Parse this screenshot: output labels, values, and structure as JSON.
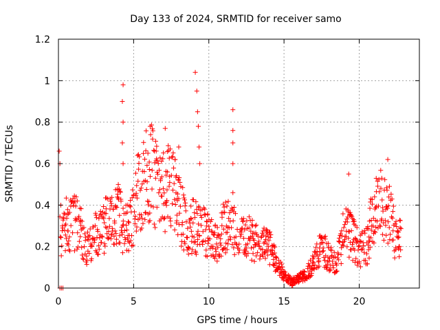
{
  "chart_data": {
    "type": "scatter",
    "title": "Day 133 of 2024, SRMTID for receiver samo",
    "xlabel": "GPS time / hours",
    "ylabel": "SRMTID / TECUs",
    "xlim": [
      0,
      24
    ],
    "ylim": [
      0,
      1.2
    ],
    "xticks": [
      "0",
      "5",
      "10",
      "15",
      "20"
    ],
    "xtick_values": [
      0,
      5,
      10,
      15,
      20
    ],
    "yticks": [
      "0",
      "0.2",
      "0.4",
      "0.6",
      "0.8",
      "1",
      "1.2"
    ],
    "ytick_values": [
      0,
      0.2,
      0.4,
      0.6,
      0.8,
      1.0,
      1.2
    ],
    "grid": true,
    "marker": "+",
    "marker_color": "#ff0000",
    "series": [
      {
        "name": "SRMTID",
        "trend": [
          [
            0.0,
            0.55
          ],
          [
            0.2,
            0.25
          ],
          [
            0.5,
            0.3
          ],
          [
            1.0,
            0.32
          ],
          [
            1.5,
            0.28
          ],
          [
            2.0,
            0.18
          ],
          [
            2.5,
            0.27
          ],
          [
            3.0,
            0.3
          ],
          [
            3.5,
            0.3
          ],
          [
            4.0,
            0.35
          ],
          [
            4.3,
            0.3
          ],
          [
            4.5,
            0.28
          ],
          [
            5.0,
            0.38
          ],
          [
            5.5,
            0.5
          ],
          [
            6.0,
            0.58
          ],
          [
            6.5,
            0.5
          ],
          [
            7.0,
            0.45
          ],
          [
            7.5,
            0.5
          ],
          [
            8.0,
            0.4
          ],
          [
            8.5,
            0.28
          ],
          [
            9.0,
            0.3
          ],
          [
            9.5,
            0.28
          ],
          [
            10.0,
            0.25
          ],
          [
            10.5,
            0.22
          ],
          [
            11.0,
            0.3
          ],
          [
            11.5,
            0.3
          ],
          [
            12.0,
            0.28
          ],
          [
            12.5,
            0.25
          ],
          [
            13.0,
            0.22
          ],
          [
            13.5,
            0.2
          ],
          [
            14.0,
            0.2
          ],
          [
            14.5,
            0.12
          ],
          [
            15.0,
            0.06
          ],
          [
            15.5,
            0.03
          ],
          [
            16.0,
            0.05
          ],
          [
            16.5,
            0.07
          ],
          [
            17.0,
            0.12
          ],
          [
            17.5,
            0.2
          ],
          [
            18.0,
            0.15
          ],
          [
            18.5,
            0.12
          ],
          [
            19.0,
            0.28
          ],
          [
            19.5,
            0.25
          ],
          [
            20.0,
            0.18
          ],
          [
            20.5,
            0.2
          ],
          [
            21.0,
            0.38
          ],
          [
            21.5,
            0.4
          ],
          [
            22.0,
            0.35
          ],
          [
            22.5,
            0.22
          ],
          [
            22.8,
            0.3
          ]
        ],
        "spikes": [
          [
            0.05,
            0.66
          ],
          [
            0.1,
            0.6
          ],
          [
            4.3,
            0.98
          ],
          [
            4.25,
            0.9
          ],
          [
            4.3,
            0.8
          ],
          [
            4.25,
            0.7
          ],
          [
            4.3,
            0.6
          ],
          [
            9.1,
            1.04
          ],
          [
            9.2,
            0.95
          ],
          [
            9.25,
            0.85
          ],
          [
            9.3,
            0.78
          ],
          [
            9.35,
            0.68
          ],
          [
            9.4,
            0.6
          ],
          [
            11.6,
            0.86
          ],
          [
            11.6,
            0.76
          ],
          [
            11.6,
            0.7
          ],
          [
            11.6,
            0.6
          ],
          [
            11.6,
            0.46
          ],
          [
            6.1,
            0.78
          ],
          [
            7.1,
            0.77
          ],
          [
            8.0,
            0.68
          ],
          [
            19.3,
            0.55
          ],
          [
            21.9,
            0.62
          ]
        ],
        "zero_points": [
          [
            0.1,
            0.0
          ],
          [
            0.2,
            0.0
          ],
          [
            0.3,
            0.0
          ]
        ]
      }
    ]
  }
}
